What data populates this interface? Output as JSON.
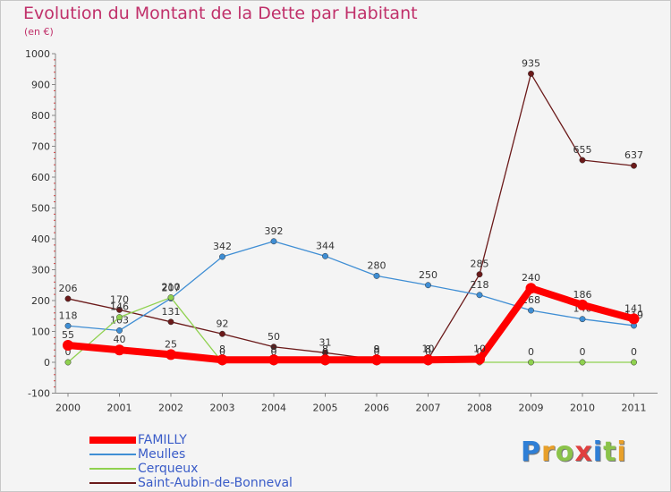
{
  "chart_data": {
    "type": "line",
    "title": "Evolution du Montant de la Dette par Habitant",
    "subtitle": "(en €)",
    "ylim": [
      -100,
      1000
    ],
    "yticks": [
      "-100",
      "0",
      "100",
      "200",
      "300",
      "400",
      "500",
      "600",
      "700",
      "800",
      "900",
      "1000"
    ],
    "ytick_values": [
      -100,
      0,
      100,
      200,
      300,
      400,
      500,
      600,
      700,
      800,
      900,
      1000
    ],
    "categories": [
      "2000",
      "2001",
      "2002",
      "2003",
      "2004",
      "2005",
      "2006",
      "2007",
      "2008",
      "2009",
      "2010",
      "2011"
    ],
    "grid": false,
    "legend_position": "bottom-left",
    "series": [
      {
        "name": "Saint-Aubin-de-Bonneval",
        "color": "#6b1a1a",
        "values": [
          206,
          170,
          131,
          92,
          50,
          31,
          9,
          10,
          285,
          935,
          655,
          637
        ],
        "labels": [
          "206",
          "170",
          "131",
          "92",
          "50",
          "31",
          "9",
          "10",
          "285",
          "935",
          "655",
          "637"
        ]
      },
      {
        "name": "Meulles",
        "color": "#3f8ed4",
        "values": [
          118,
          103,
          207,
          342,
          392,
          344,
          280,
          250,
          218,
          168,
          140,
          119
        ],
        "labels": [
          "118",
          "103",
          "207",
          "342",
          "392",
          "344",
          "280",
          "250",
          "218",
          "168",
          "140",
          "119"
        ]
      },
      {
        "name": "Cerqueux",
        "color": "#8fd14f",
        "values": [
          0,
          146,
          210,
          0,
          0,
          0,
          0,
          0,
          0,
          0,
          0,
          0
        ],
        "labels": [
          "0",
          "146",
          "210",
          "0",
          "0",
          "0",
          "0",
          "0",
          "0",
          "0",
          "0",
          "0"
        ]
      },
      {
        "name": "FAMILLY",
        "color": "#ff0000",
        "values": [
          55,
          40,
          25,
          8,
          8,
          8,
          8,
          8,
          10,
          240,
          186,
          141
        ],
        "labels": [
          "55",
          "40",
          "25",
          "8",
          "8",
          "8",
          "8",
          "8",
          "10",
          "240",
          "186",
          "141"
        ]
      }
    ],
    "legend": [
      "FAMILLY",
      "Meulles",
      "Cerqueux",
      "Saint-Aubin-de-Bonneval"
    ]
  },
  "brand": {
    "letters": [
      "P",
      "r",
      "o",
      "x",
      "i",
      "t",
      "i"
    ],
    "colors": [
      "#2f7fd6",
      "#e8a02a",
      "#8bc34a",
      "#e04040",
      "#2f7fd6",
      "#8bc34a",
      "#e8a02a"
    ]
  }
}
